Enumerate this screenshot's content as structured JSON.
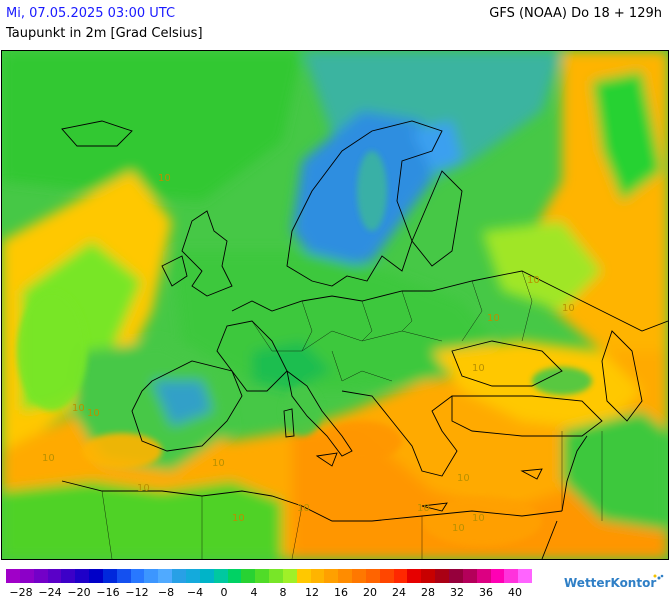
{
  "header": {
    "datetime": "Mi, 07.05.2025 03:00 UTC",
    "model_run": "GFS (NOAA) Do 18 + 129h",
    "parameter": "Taupunkt in 2m [Grad Celsius]"
  },
  "map": {
    "region": "Europe",
    "contour_labels": [
      "10",
      "10",
      "10",
      "10",
      "10",
      "10",
      "10",
      "10",
      "10",
      "10",
      "10",
      "10",
      "10",
      "10",
      "10",
      "10"
    ]
  },
  "legend": {
    "colors": [
      "#a000c8",
      "#8c00c8",
      "#7300c8",
      "#5a00c8",
      "#3c00c8",
      "#1e00c8",
      "#0000c8",
      "#0028dc",
      "#1450f0",
      "#2878ff",
      "#3c96ff",
      "#50aaff",
      "#28a0e6",
      "#14aadc",
      "#00b4c8",
      "#00c8a0",
      "#00d264",
      "#28d232",
      "#50dc28",
      "#78e628",
      "#a0f028",
      "#ffc800",
      "#ffb400",
      "#ffa000",
      "#ff8c00",
      "#ff7800",
      "#ff6400",
      "#ff4600",
      "#ff2800",
      "#e60000",
      "#c80000",
      "#aa0014",
      "#96003c",
      "#b4005a",
      "#dc0082",
      "#ff00b4",
      "#ff32dc",
      "#ff64ff"
    ],
    "tick_labels": [
      "-28",
      "-24",
      "-20",
      "-16",
      "-12",
      "-8",
      "-4",
      "0",
      "4",
      "8",
      "12",
      "16",
      "20",
      "24",
      "28",
      "32",
      "36",
      "40"
    ]
  },
  "branding": {
    "name": "WetterKontor",
    "icon": "wetterkontor-logo-icon"
  },
  "colors": {
    "date_text": "#1a1aff",
    "brand_text": "#2f7fc6",
    "land_green": "#3cc83c",
    "orange": "#ffaa00",
    "yellow": "#ffc800",
    "blue": "#3c96dc"
  }
}
